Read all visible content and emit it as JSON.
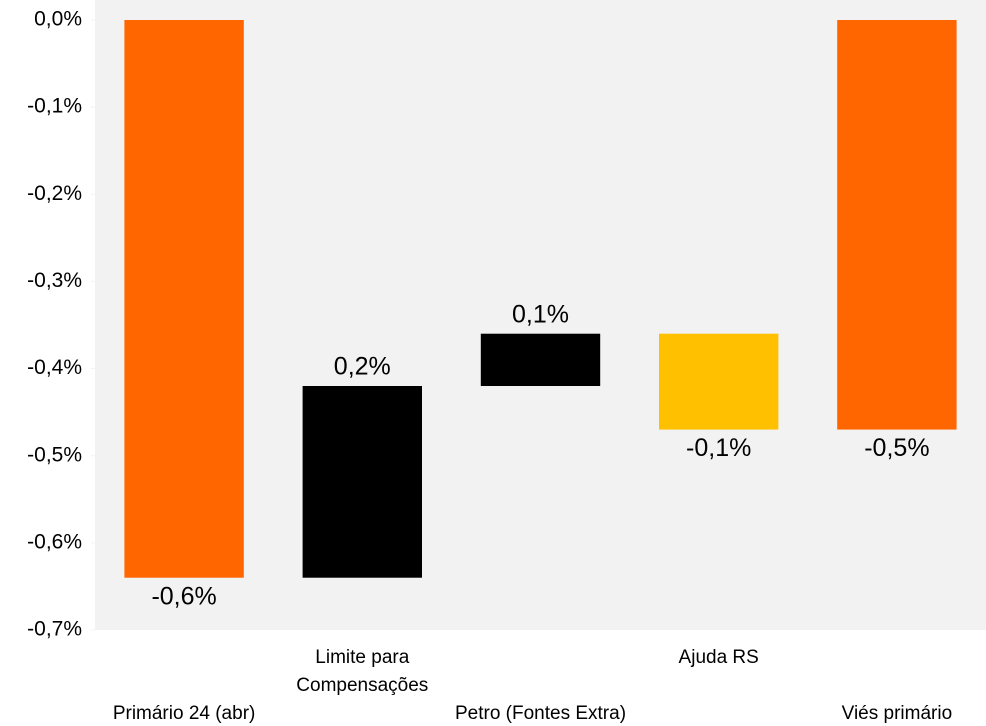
{
  "chart_data": {
    "type": "waterfall",
    "categories": [
      "Primário 24 (abr)",
      "Limite para Compensações",
      "Petro (Fontes Extra)",
      "Ajuda RS",
      "Viés primário"
    ],
    "values": [
      -0.64,
      0.22,
      0.06,
      -0.11,
      -0.47
    ],
    "value_labels": [
      "-0,6%",
      "0,2%",
      "0,1%",
      "-0,1%",
      "-0,5%"
    ],
    "measures": [
      "absolute",
      "relative",
      "relative",
      "relative",
      "total"
    ],
    "colors": [
      "#ff6600",
      "#000000",
      "#000000",
      "#ffc000",
      "#ff6600"
    ],
    "ylim": [
      -0.7,
      0
    ],
    "yticks": [
      {
        "value": 0,
        "label": "0,0%"
      },
      {
        "value": -0.1,
        "label": "-0,1%"
      },
      {
        "value": -0.2,
        "label": "-0,2%"
      },
      {
        "value": -0.3,
        "label": "-0,3%"
      },
      {
        "value": -0.4,
        "label": "-0,4%"
      },
      {
        "value": -0.5,
        "label": "-0,5%"
      },
      {
        "value": -0.6,
        "label": "-0,6%"
      },
      {
        "value": -0.7,
        "label": "-0,7%"
      }
    ]
  }
}
